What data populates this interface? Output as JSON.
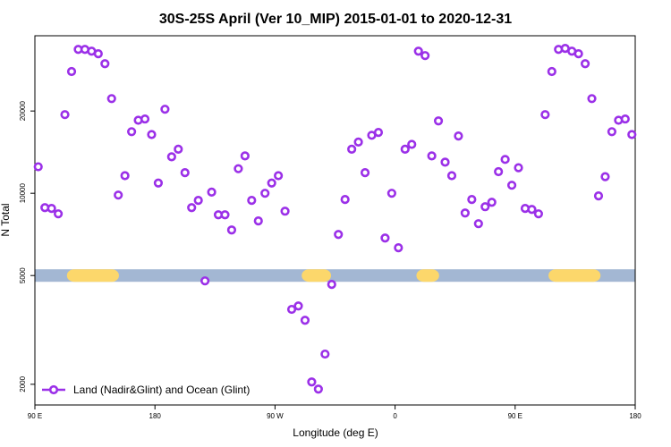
{
  "chart_data": {
    "type": "scatter",
    "title": "30S-25S April (Ver 10_MIP)   2015-01-01 to 2020-12-31",
    "xlabel": "Longitude (deg E)",
    "ylabel": "N Total",
    "log_y": true,
    "legend": "lower left",
    "xlim": [
      90,
      540
    ],
    "ylim": [
      1680,
      37700
    ],
    "xticks": [
      {
        "value": 90,
        "label": "90 E"
      },
      {
        "value": 180,
        "label": "180"
      },
      {
        "value": 270,
        "label": "90 W"
      },
      {
        "value": 360,
        "label": "0"
      },
      {
        "value": 450,
        "label": "90 E"
      },
      {
        "value": 540,
        "label": "180"
      }
    ],
    "yticks": [
      2000,
      5000,
      10000,
      20000
    ],
    "band": {
      "value": 5000,
      "color": "#a3b7d3",
      "highlight_color": "#fcd76b",
      "highlights": [
        [
          114,
          153
        ],
        [
          290,
          312
        ],
        [
          376,
          393
        ],
        [
          475,
          514
        ]
      ]
    },
    "series": [
      {
        "name": "Land (Nadir&Glint) and Ocean (Glint)",
        "color": "#9b30e8",
        "x": [
          92.5,
          97.5,
          102.5,
          107.5,
          112.5,
          117.5,
          122.5,
          127.5,
          132.5,
          137.5,
          142.5,
          147.5,
          152.5,
          157.5,
          162.5,
          167.5,
          172.5,
          177.5,
          182.5,
          187.5,
          192.5,
          197.5,
          202.5,
          207.5,
          212.5,
          217.5,
          222.5,
          227.5,
          232.5,
          237.5,
          242.5,
          247.5,
          252.5,
          257.5,
          262.5,
          267.5,
          272.5,
          277.5,
          282.5,
          287.5,
          292.5,
          297.5,
          302.5,
          307.5,
          312.5,
          317.5,
          322.5,
          327.5,
          332.5,
          337.5,
          342.5,
          347.5,
          352.5,
          357.5,
          362.5,
          367.5,
          372.5,
          377.5,
          382.5,
          387.5,
          392.5,
          397.5,
          402.5,
          407.5,
          412.5,
          417.5,
          422.5,
          427.5,
          432.5,
          437.5,
          442.5,
          447.5,
          452.5,
          457.5,
          462.5,
          467.5,
          472.5,
          477.5,
          482.5,
          487.5,
          492.5,
          497.5,
          502.5,
          507.5,
          512.5,
          517.5,
          522.5,
          527.5,
          532.5,
          537.5
        ],
        "values": [
          12500,
          8860,
          8800,
          8410,
          19400,
          27900,
          33600,
          33600,
          33100,
          32400,
          29800,
          22200,
          9850,
          11600,
          16800,
          18500,
          18700,
          16400,
          10900,
          20300,
          13600,
          14500,
          11900,
          8860,
          9420,
          4780,
          10100,
          8340,
          8340,
          7340,
          12300,
          13700,
          9420,
          7920,
          10000,
          10900,
          11600,
          8600,
          3760,
          3870,
          3430,
          2040,
          1920,
          2580,
          4640,
          7070,
          9490,
          14500,
          15400,
          11900,
          16300,
          16700,
          6860,
          10000,
          6320,
          14500,
          15100,
          33100,
          31900,
          13700,
          18400,
          13000,
          11600,
          16200,
          8470,
          9490,
          7740,
          8930,
          9270,
          12000,
          13300,
          10700,
          12400,
          8800,
          8730,
          8410,
          19400,
          27900,
          33600,
          33900,
          33100,
          32400,
          29800,
          22200,
          9780,
          11500,
          16800,
          18500,
          18700,
          16400
        ]
      }
    ]
  }
}
